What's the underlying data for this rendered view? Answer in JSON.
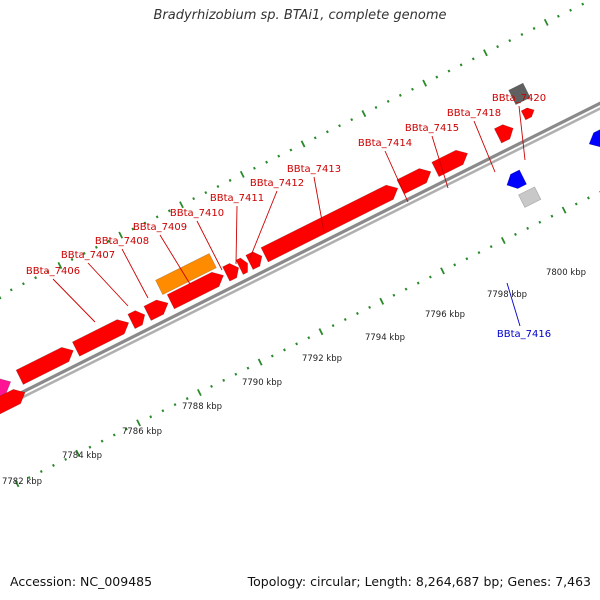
{
  "header": {
    "title": "Bradyrhizobium sp. BTAi1, complete genome"
  },
  "footer": {
    "accession": "Accession: NC_009485",
    "summary": "Topology: circular; Length: 8,264,687 bp; Genes: 7,463"
  },
  "colors": {
    "backbone": "#8a8a8a",
    "forward_gene": "#ff0000",
    "reverse_gene": "#0000ff",
    "gene_label_forward": "#cc0000",
    "gene_label_reverse": "#0000cc",
    "tick": "#2a8a2a",
    "highlight_gene": "#ff8c00",
    "pink_gene": "#ff1493",
    "gray_gene": "#606060",
    "light_gray_gene": "#c8c8c8",
    "slate_gene": "#483d8b"
  },
  "scale": {
    "unit": "kbp",
    "labels": [
      "7782 kbp",
      "7784 kbp",
      "7786 kbp",
      "7788 kbp",
      "7790 kbp",
      "7792 kbp",
      "7794 kbp",
      "7796 kbp",
      "7798 kbp",
      "7800 kbp"
    ]
  },
  "gene_labels": {
    "forward": [
      "BBta_7406",
      "BBta_7407",
      "BBta_7408",
      "BBta_7409",
      "BBta_7410",
      "BBta_7411",
      "BBta_7412",
      "BBta_7413",
      "BBta_7414",
      "BBta_7415",
      "BBta_7418",
      "BBta_7420"
    ],
    "reverse": [
      "BBta_7416"
    ]
  }
}
